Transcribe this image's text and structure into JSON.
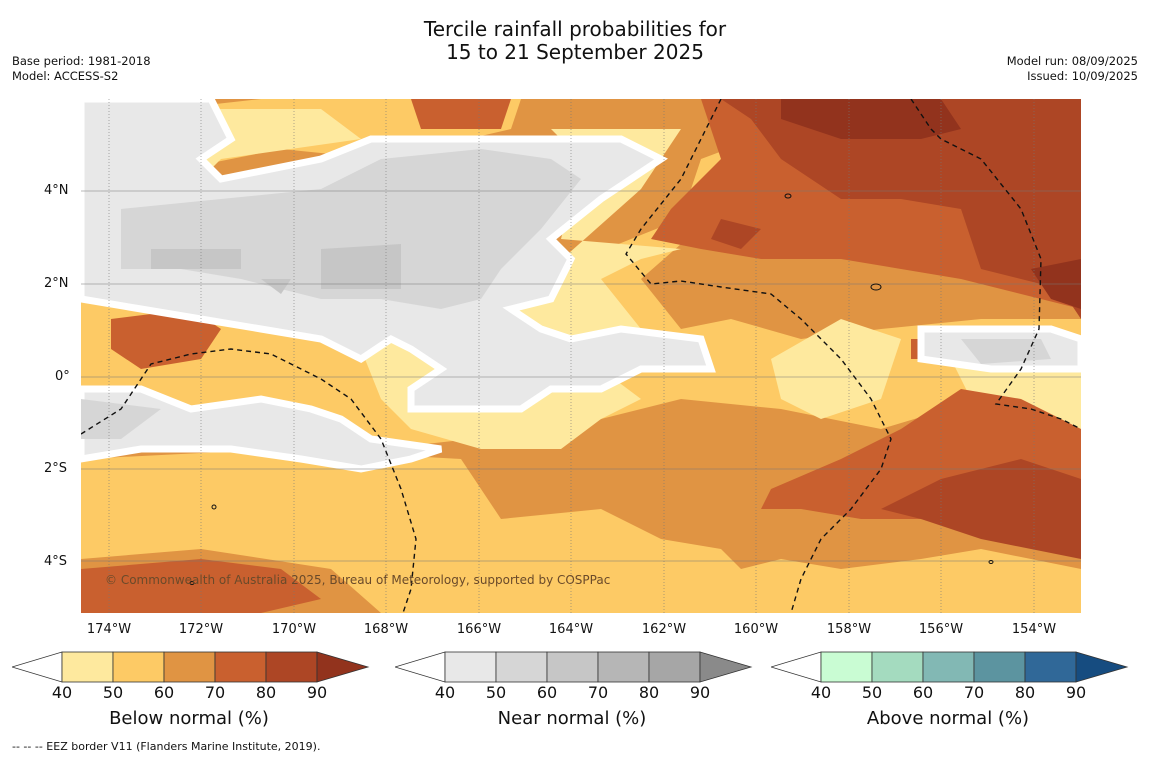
{
  "title": {
    "line1": "Tercile rainfall probabilities for",
    "line2": "15 to 21 September 2025"
  },
  "meta_left": {
    "base_period": "Base period: 1981-2018",
    "model": "Model: ACCESS-S2"
  },
  "meta_right": {
    "model_run": "Model run: 08/09/2025",
    "issued": "Issued: 10/09/2025"
  },
  "map": {
    "lat_labels": [
      "4°N",
      "2°N",
      "0°",
      "2°S",
      "4°S"
    ],
    "lon_labels": [
      "174°W",
      "172°W",
      "170°W",
      "168°W",
      "166°W",
      "164°W",
      "162°W",
      "160°W",
      "158°W",
      "156°W",
      "154°W"
    ],
    "copyright": "© Commonwealth of Australia 2025, Bureau of Meteorology, supported by COSPPac",
    "colors": {
      "below": [
        "#fee99e",
        "#fdca65",
        "#e09443",
        "#c9602f",
        "#ad4625",
        "#92331d"
      ],
      "near": [
        "#e8e8e8",
        "#d6d6d6",
        "#c6c6c6",
        "#b6b6b6",
        "#a6a6a6",
        "#8a8a8a"
      ],
      "above": [
        "#c9fcd3",
        "#a4dbbf",
        "#82b8b4",
        "#5c94a0",
        "#306898",
        "#164c80"
      ]
    }
  },
  "colorbars": [
    {
      "title": "Below normal (%)",
      "ticks": [
        "40",
        "50",
        "60",
        "70",
        "80",
        "90"
      ]
    },
    {
      "title": "Near normal (%)",
      "ticks": [
        "40",
        "50",
        "60",
        "70",
        "80",
        "90"
      ]
    },
    {
      "title": "Above normal (%)",
      "ticks": [
        "40",
        "50",
        "60",
        "70",
        "80",
        "90"
      ]
    }
  ],
  "footer": "--  --  -- EEZ border V11 (Flanders Marine Institute, 2019)."
}
